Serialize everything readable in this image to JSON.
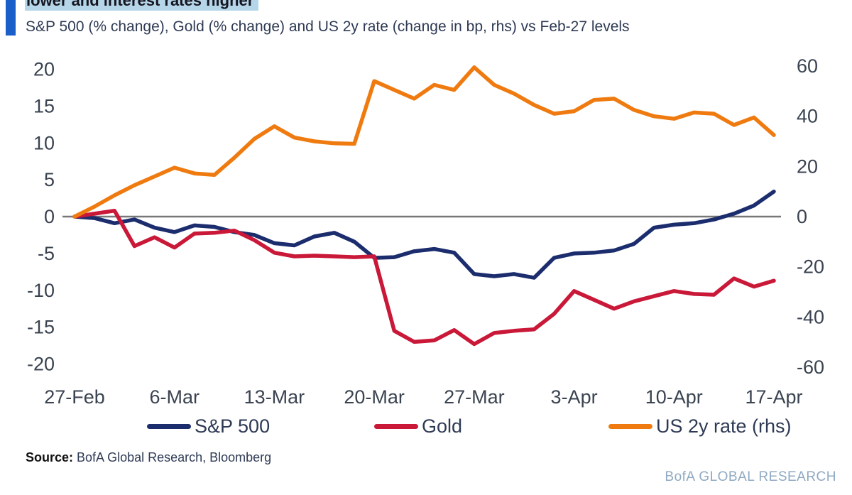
{
  "header": {
    "title_highlighted": "lower and interest rates higher",
    "subtitle": "S&P 500 (% change), Gold (% change) and US 2y rate (change in bp, rhs) vs Feb-27 levels"
  },
  "footer": {
    "source_label": "Source:",
    "source_text": " BofA Global Research, Bloomberg",
    "watermark": "BofA GLOBAL RESEARCH"
  },
  "colors": {
    "accent_bar": "#1a5fc9",
    "title_highlight": "#b5d5e8",
    "zero_line": "#777777",
    "sp500": "#1c2d6e",
    "gold": "#c91838",
    "us2y": "#ef7b10"
  },
  "chart_data": {
    "type": "line",
    "title": "lower and interest rates higher",
    "subtitle": "S&P 500 (% change), Gold (% change) and US 2y rate (change in bp, rhs) vs Feb-27 levels",
    "categories": [
      "27-Feb",
      "28-Feb",
      "3-Mar",
      "4-Mar",
      "5-Mar",
      "6-Mar",
      "7-Mar",
      "10-Mar",
      "11-Mar",
      "12-Mar",
      "13-Mar",
      "14-Mar",
      "17-Mar",
      "18-Mar",
      "19-Mar",
      "20-Mar",
      "21-Mar",
      "24-Mar",
      "25-Mar",
      "26-Mar",
      "27-Mar",
      "28-Mar",
      "31-Mar",
      "1-Apr",
      "2-Apr",
      "3-Apr",
      "4-Apr",
      "7-Apr",
      "8-Apr",
      "9-Apr",
      "10-Apr",
      "11-Apr",
      "14-Apr",
      "15-Apr",
      "16-Apr",
      "17-Apr"
    ],
    "x_tick_labels": [
      "27-Feb",
      "6-Mar",
      "13-Mar",
      "20-Mar",
      "27-Mar",
      "3-Apr",
      "10-Apr",
      "17-Apr"
    ],
    "x_tick_indices": [
      0,
      5,
      10,
      15,
      20,
      25,
      30,
      35
    ],
    "y_axis_left": {
      "ticks": [
        20,
        15,
        10,
        5,
        0,
        -5,
        -10,
        -15,
        -20
      ],
      "min": -20,
      "max": 20
    },
    "y_axis_right": {
      "ticks": [
        60,
        40,
        20,
        0,
        -20,
        -40,
        -60
      ],
      "min": -60,
      "max": 60
    },
    "zero_line": true,
    "legend_position": "bottom",
    "series": [
      {
        "name": "S&P 500",
        "axis": "left",
        "color": "#1c2d6e",
        "values": [
          0,
          -0.2,
          -0.9,
          -0.4,
          -1.5,
          -2.1,
          -1.2,
          -1.4,
          -2.1,
          -2.5,
          -3.6,
          -3.9,
          -2.7,
          -2.2,
          -3.4,
          -5.6,
          -5.5,
          -4.7,
          -4.4,
          -4.9,
          -7.8,
          -8.1,
          -7.8,
          -8.3,
          -5.6,
          -5.0,
          -4.9,
          -4.6,
          -3.7,
          -1.5,
          -1.1,
          -0.9,
          -0.4,
          0.4,
          1.5,
          3.4
        ]
      },
      {
        "name": "Gold",
        "axis": "left",
        "color": "#c91838",
        "values": [
          0,
          0.4,
          0.8,
          -4.0,
          -2.8,
          -4.2,
          -2.3,
          -2.2,
          -1.9,
          -3.2,
          -4.9,
          -5.4,
          -5.3,
          -5.4,
          -5.5,
          -5.4,
          -15.5,
          -17.0,
          -16.8,
          -15.4,
          -17.3,
          -15.8,
          -15.5,
          -15.3,
          -13.2,
          -10.1,
          -11.3,
          -12.5,
          -11.5,
          -10.8,
          -10.1,
          -10.5,
          -10.6,
          -8.4,
          -9.5,
          -8.7
        ]
      },
      {
        "name": "US 2y rate (rhs)",
        "axis": "right",
        "color": "#ef7b10",
        "values": [
          0,
          4,
          8.5,
          12.5,
          16,
          19.5,
          17.2,
          16.6,
          23.5,
          31,
          36,
          31.5,
          30,
          29.2,
          29,
          54,
          50.5,
          47,
          52.5,
          50.5,
          59.5,
          52.5,
          49,
          44.5,
          41,
          42,
          46.5,
          47,
          42.5,
          40,
          39,
          41.5,
          41,
          36.5,
          39.5,
          32.5
        ]
      }
    ]
  },
  "legend_layout": {
    "item_lefts": [
      207,
      527,
      857
    ]
  }
}
